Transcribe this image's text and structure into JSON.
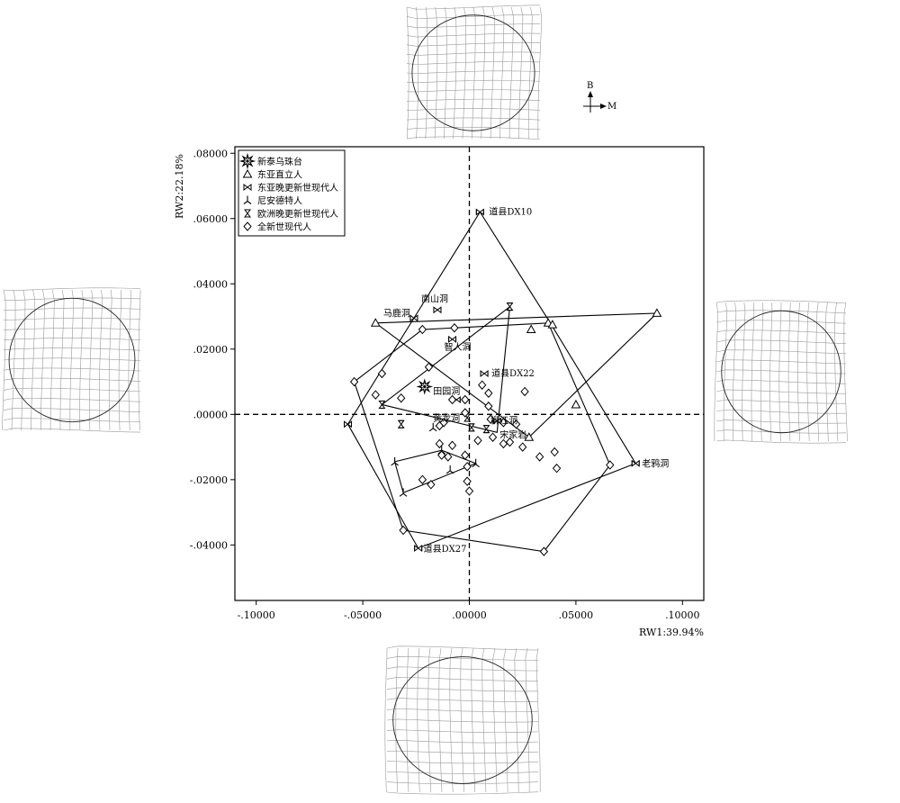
{
  "compass": {
    "up": "B",
    "right": "M"
  },
  "chart_data": {
    "type": "scatter",
    "xlabel": "RW1:39.94%",
    "ylabel": "RW2:22.18%",
    "xlim": [
      -0.11,
      0.11
    ],
    "ylim": [
      -0.057,
      0.082
    ],
    "xticks": [
      -0.1,
      -0.05,
      0.0,
      0.05,
      0.1
    ],
    "xtick_labels": [
      "-.10000",
      "-.05000",
      ".00000",
      ".05000",
      ".10000"
    ],
    "yticks": [
      -0.04,
      -0.02,
      0.0,
      0.02,
      0.04,
      0.06,
      0.08
    ],
    "ytick_labels": [
      "-.04000",
      "-.02000",
      ".00000",
      ".02000",
      ".04000",
      ".06000",
      ".08000"
    ],
    "reference_lines": {
      "x": 0,
      "y": 0,
      "style": "dashed"
    },
    "legend_position": "top-left",
    "series": [
      {
        "name": "新泰乌珠台",
        "marker": "star",
        "points": [
          [
            -0.021,
            0.0085
          ]
        ],
        "hull": false
      },
      {
        "name": "东亚直立人",
        "marker": "triangle",
        "points": [
          [
            -0.044,
            0.028
          ],
          [
            0.029,
            0.026
          ],
          [
            0.037,
            0.028
          ],
          [
            0.039,
            0.0275
          ],
          [
            0.088,
            0.031
          ],
          [
            0.05,
            0.003
          ],
          [
            0.028,
            -0.007
          ]
        ],
        "hull": [
          [
            -0.044,
            0.028
          ],
          [
            0.088,
            0.031
          ],
          [
            0.028,
            -0.007
          ]
        ]
      },
      {
        "name": "东亚晚更新世现代人",
        "marker": "bowtie",
        "points": [
          [
            0.005,
            0.062
          ],
          [
            -0.015,
            0.032
          ],
          [
            -0.026,
            0.0295
          ],
          [
            -0.008,
            0.023
          ],
          [
            0.007,
            0.0125
          ],
          [
            -0.057,
            -0.003
          ],
          [
            0.078,
            -0.015
          ],
          [
            -0.024,
            -0.041
          ],
          [
            0.013,
            -0.002
          ],
          [
            -0.006,
            0.0045
          ]
        ],
        "hull": [
          [
            0.005,
            0.062
          ],
          [
            0.038,
            0.028
          ],
          [
            0.078,
            -0.015
          ],
          [
            -0.024,
            -0.041
          ],
          [
            -0.057,
            -0.003
          ],
          [
            -0.026,
            0.0295
          ]
        ]
      },
      {
        "name": "尼安德特人",
        "marker": "tripod",
        "points": [
          [
            -0.031,
            -0.024
          ],
          [
            -0.035,
            -0.0145
          ],
          [
            -0.013,
            -0.011
          ],
          [
            -0.009,
            -0.017
          ],
          [
            0.003,
            -0.015
          ],
          [
            -0.017,
            -0.004
          ]
        ],
        "hull": [
          [
            -0.031,
            -0.024
          ],
          [
            -0.035,
            -0.0145
          ],
          [
            -0.013,
            -0.011
          ],
          [
            0.003,
            -0.015
          ]
        ]
      },
      {
        "name": "欧洲晚更新世现代人",
        "marker": "hourglass",
        "points": [
          [
            0.019,
            0.033
          ],
          [
            -0.041,
            0.003
          ],
          [
            0.001,
            -0.004
          ],
          [
            -0.001,
            -0.001
          ],
          [
            0.008,
            -0.0045
          ],
          [
            -0.032,
            -0.003
          ]
        ],
        "hull": [
          [
            0.019,
            0.033
          ],
          [
            0.013,
            -0.0055
          ],
          [
            -0.041,
            0.003
          ]
        ]
      },
      {
        "name": "全新世现代人",
        "marker": "diamond",
        "points": [
          [
            -0.054,
            0.01
          ],
          [
            -0.044,
            0.006
          ],
          [
            -0.041,
            0.0125
          ],
          [
            -0.022,
            0.026
          ],
          [
            -0.032,
            0.005
          ],
          [
            -0.019,
            0.0145
          ],
          [
            -0.007,
            0.0265
          ],
          [
            0.006,
            0.009
          ],
          [
            0.009,
            0.0065
          ],
          [
            0.026,
            0.007
          ],
          [
            -0.012,
            -0.0025
          ],
          [
            -0.008,
            0.0045
          ],
          [
            -0.002,
            0.0045
          ],
          [
            0.009,
            0.0025
          ],
          [
            0.01,
            -0.0015
          ],
          [
            0.016,
            -0.0025
          ],
          [
            0.022,
            -0.003
          ],
          [
            -0.014,
            -0.0035
          ],
          [
            -0.014,
            -0.009
          ],
          [
            -0.008,
            -0.0095
          ],
          [
            0.004,
            -0.008
          ],
          [
            0.011,
            -0.007
          ],
          [
            0.016,
            -0.009
          ],
          [
            0.019,
            -0.0085
          ],
          [
            0.025,
            -0.01
          ],
          [
            0.033,
            -0.013
          ],
          [
            0.04,
            -0.0115
          ],
          [
            0.041,
            -0.0165
          ],
          [
            -0.013,
            -0.0125
          ],
          [
            -0.01,
            -0.013
          ],
          [
            -0.002,
            -0.0125
          ],
          [
            -0.001,
            -0.016
          ],
          [
            -0.022,
            -0.02
          ],
          [
            -0.018,
            -0.0215
          ],
          [
            -0.001,
            -0.0205
          ],
          [
            0.0,
            -0.0235
          ],
          [
            -0.031,
            -0.0355
          ],
          [
            0.035,
            -0.042
          ],
          [
            0.066,
            -0.0155
          ],
          [
            -0.002,
            0.0005
          ]
        ],
        "hull": [
          [
            -0.054,
            0.01
          ],
          [
            -0.022,
            0.026
          ],
          [
            0.037,
            0.028
          ],
          [
            0.066,
            -0.0155
          ],
          [
            0.035,
            -0.042
          ],
          [
            -0.031,
            -0.0355
          ]
        ]
      }
    ],
    "annotations": [
      {
        "text": "道县DX10",
        "x": 0.005,
        "y": 0.062
      },
      {
        "text": "南山洞",
        "x": -0.015,
        "y": 0.032
      },
      {
        "text": "马鹿洞",
        "x": -0.026,
        "y": 0.0295
      },
      {
        "text": "智人洞",
        "x": -0.008,
        "y": 0.023
      },
      {
        "text": "道县DX22",
        "x": 0.007,
        "y": 0.0125
      },
      {
        "text": "田园洞",
        "x": -0.006,
        "y": 0.0045
      },
      {
        "text": "柳江洞",
        "x": 0.01,
        "y": -0.002
      },
      {
        "text": "黄龙洞",
        "x": -0.001,
        "y": -0.001
      },
      {
        "text": "宋家岩",
        "x": 0.013,
        "y": -0.0055
      },
      {
        "text": "老鸦洞",
        "x": 0.078,
        "y": -0.015
      },
      {
        "text": "道县DX27",
        "x": -0.024,
        "y": -0.041
      }
    ]
  }
}
